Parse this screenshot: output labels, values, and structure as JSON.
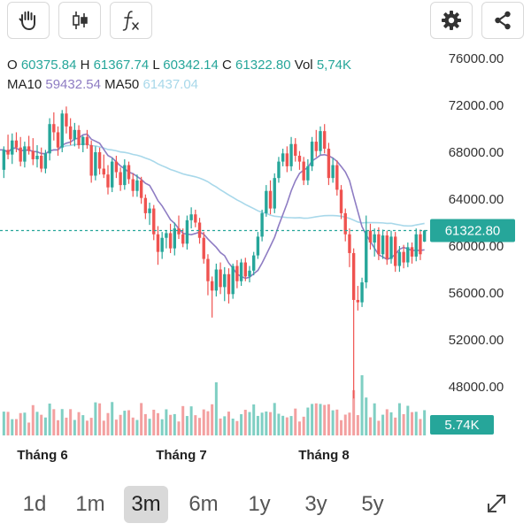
{
  "toolbar": {
    "left_icons": [
      "hand-icon",
      "candlestick-icon",
      "function-icon"
    ],
    "right_icons": [
      "gear-icon",
      "share-icon"
    ]
  },
  "ohlc": {
    "o_label": "O",
    "o_value": "60375.84",
    "h_label": "H",
    "h_value": "61367.74",
    "l_label": "L",
    "l_value": "60342.14",
    "c_label": "C",
    "c_value": "61322.80",
    "vol_label": "Vol",
    "vol_value": "5,74K"
  },
  "ma": {
    "ma10_label": "MA10",
    "ma10_value": "59432.54",
    "ma50_label": "MA50",
    "ma50_value": "61437.04"
  },
  "price_badge": "61322.80",
  "volume_badge": "5.74K",
  "timeframes": [
    {
      "label": "1d",
      "active": false
    },
    {
      "label": "1m",
      "active": false
    },
    {
      "label": "3m",
      "active": true
    },
    {
      "label": "6m",
      "active": false
    },
    {
      "label": "1y",
      "active": false
    },
    {
      "label": "3y",
      "active": false
    },
    {
      "label": "5y",
      "active": false
    }
  ],
  "colors": {
    "up": "#26a69a",
    "down": "#ef5350",
    "vol_up": "#7fcfc3",
    "vol_down": "#f3a0a0",
    "ma10": "#8e7cc3",
    "ma50": "#a8d8ea",
    "badge": "#26a69a"
  },
  "chart_data": {
    "type": "candlestick",
    "y_ticks": [
      "76000.00",
      "72000.00",
      "68000.00",
      "64000.00",
      "60000.00",
      "56000.00",
      "52000.00",
      "48000.00"
    ],
    "ylim": [
      46000,
      77000
    ],
    "x_ticks": [
      "Tháng 6",
      "Tháng 7",
      "Tháng 8"
    ],
    "last_close": 61322.8,
    "candles": [
      [
        66500,
        68500,
        65800,
        68200
      ],
      [
        68200,
        69500,
        67400,
        67800
      ],
      [
        67800,
        69600,
        67000,
        69000
      ],
      [
        69000,
        69700,
        68000,
        68400
      ],
      [
        68400,
        69300,
        66800,
        67200
      ],
      [
        67200,
        68900,
        66700,
        68500
      ],
      [
        68500,
        69400,
        67800,
        68100
      ],
      [
        68100,
        69200,
        66900,
        67400
      ],
      [
        67400,
        68600,
        66700,
        67700
      ],
      [
        67700,
        68400,
        66300,
        66600
      ],
      [
        66600,
        68200,
        66200,
        67900
      ],
      [
        67900,
        70900,
        67300,
        70400
      ],
      [
        70400,
        71400,
        69000,
        69700
      ],
      [
        69700,
        70200,
        67700,
        68400
      ],
      [
        68400,
        71600,
        68000,
        71300
      ],
      [
        71300,
        71900,
        69600,
        70200
      ],
      [
        70200,
        70900,
        68600,
        69100
      ],
      [
        69100,
        70500,
        68500,
        69900
      ],
      [
        69900,
        70300,
        68300,
        68600
      ],
      [
        68600,
        69400,
        68000,
        69300
      ],
      [
        69300,
        69900,
        68300,
        68600
      ],
      [
        68600,
        69000,
        65400,
        66000
      ],
      [
        66000,
        68500,
        65600,
        68000
      ],
      [
        68000,
        68400,
        66100,
        66600
      ],
      [
        66600,
        67800,
        65800,
        66100
      ],
      [
        66100,
        66900,
        64400,
        65000
      ],
      [
        65000,
        67500,
        64600,
        67200
      ],
      [
        67200,
        67700,
        65800,
        66300
      ],
      [
        66300,
        66700,
        64700,
        65200
      ],
      [
        65200,
        67400,
        64800,
        66900
      ],
      [
        66900,
        67200,
        65300,
        65700
      ],
      [
        65700,
        66200,
        64200,
        64700
      ],
      [
        64700,
        66100,
        64200,
        65600
      ],
      [
        65600,
        65900,
        63600,
        64100
      ],
      [
        64100,
        64400,
        62300,
        62800
      ],
      [
        62800,
        63700,
        61800,
        63200
      ],
      [
        63200,
        63500,
        60500,
        61000
      ],
      [
        61000,
        61700,
        58400,
        59500
      ],
      [
        59500,
        61200,
        58900,
        60700
      ],
      [
        60700,
        61300,
        59800,
        61100
      ],
      [
        61100,
        61900,
        59400,
        59800
      ],
      [
        59800,
        62000,
        59200,
        61500
      ],
      [
        61500,
        62600,
        60600,
        61000
      ],
      [
        61000,
        61500,
        59900,
        60200
      ],
      [
        60200,
        62600,
        59700,
        62200
      ],
      [
        62200,
        63300,
        61500,
        62700
      ],
      [
        62700,
        63100,
        61600,
        62000
      ],
      [
        62000,
        62400,
        60200,
        60700
      ],
      [
        60700,
        61200,
        58500,
        58900
      ],
      [
        58900,
        59300,
        55800,
        57000
      ],
      [
        57000,
        57400,
        53900,
        56200
      ],
      [
        56200,
        58500,
        55700,
        58000
      ],
      [
        58000,
        58600,
        55900,
        56500
      ],
      [
        56500,
        58200,
        55300,
        57600
      ],
      [
        57600,
        58100,
        55100,
        55900
      ],
      [
        55900,
        58500,
        55500,
        58300
      ],
      [
        58300,
        58800,
        56400,
        57000
      ],
      [
        57000,
        58900,
        56600,
        58600
      ],
      [
        58600,
        59000,
        57000,
        57400
      ],
      [
        57400,
        58300,
        56900,
        57900
      ],
      [
        57900,
        59500,
        57500,
        59200
      ],
      [
        59200,
        61200,
        58900,
        60800
      ],
      [
        60800,
        63100,
        60400,
        62800
      ],
      [
        62800,
        65200,
        62500,
        64700
      ],
      [
        64700,
        65600,
        62700,
        63200
      ],
      [
        63200,
        66200,
        62800,
        65800
      ],
      [
        65800,
        67600,
        65400,
        67200
      ],
      [
        67200,
        68300,
        66800,
        67900
      ],
      [
        67900,
        68500,
        66300,
        66800
      ],
      [
        66800,
        69300,
        66400,
        68700
      ],
      [
        68700,
        69200,
        67200,
        67700
      ],
      [
        67700,
        68100,
        66500,
        67200
      ],
      [
        67200,
        67600,
        65200,
        65600
      ],
      [
        65600,
        67400,
        65200,
        66800
      ],
      [
        66800,
        69300,
        66400,
        68900
      ],
      [
        68900,
        69900,
        67600,
        68100
      ],
      [
        68100,
        70200,
        67800,
        69800
      ],
      [
        69800,
        70400,
        67900,
        68300
      ],
      [
        68300,
        68800,
        65200,
        65800
      ],
      [
        65800,
        67500,
        65400,
        66900
      ],
      [
        66900,
        67300,
        64300,
        64800
      ],
      [
        64800,
        65200,
        62300,
        62800
      ],
      [
        62800,
        63200,
        60400,
        61000
      ],
      [
        61000,
        61500,
        58200,
        59400
      ],
      [
        59400,
        59800,
        47000,
        55400
      ],
      [
        55400,
        56600,
        54500,
        55200
      ],
      [
        55200,
        57300,
        54800,
        56900
      ],
      [
        56900,
        62600,
        56400,
        61300
      ],
      [
        61300,
        61900,
        59700,
        60300
      ],
      [
        60300,
        61500,
        59100,
        61000
      ],
      [
        61000,
        61600,
        58800,
        59300
      ],
      [
        59300,
        61400,
        58900,
        60900
      ],
      [
        60900,
        61300,
        58400,
        58900
      ],
      [
        58900,
        61300,
        58500,
        60800
      ],
      [
        60800,
        61200,
        57800,
        58300
      ],
      [
        58300,
        60000,
        57800,
        59500
      ],
      [
        59500,
        60100,
        58100,
        58600
      ],
      [
        58600,
        60300,
        58200,
        59900
      ],
      [
        59900,
        60300,
        58500,
        59100
      ],
      [
        59100,
        61500,
        58700,
        61000
      ],
      [
        61000,
        61400,
        58800,
        59300
      ],
      [
        60376,
        61368,
        60342,
        61323
      ]
    ]
  }
}
